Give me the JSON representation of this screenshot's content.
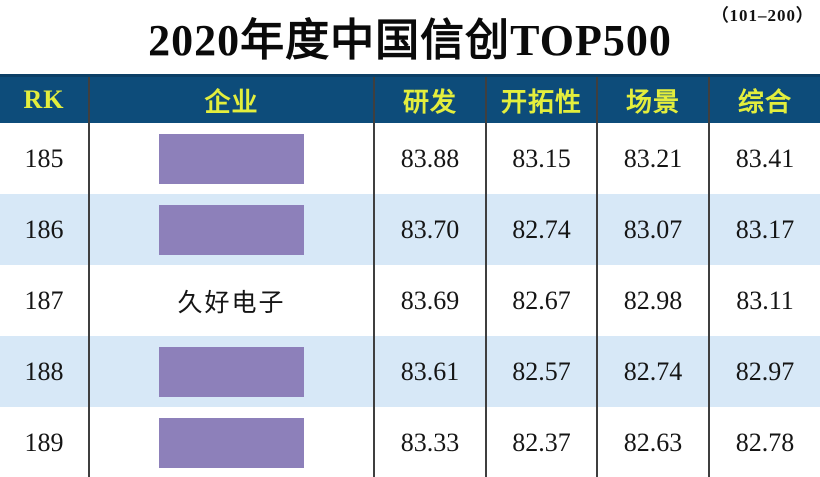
{
  "page": {
    "range_label": "（101–200）",
    "title": "2020年度中国信创TOP500"
  },
  "table": {
    "columns": [
      {
        "key": "rk",
        "label": "RK"
      },
      {
        "key": "company",
        "label": "企业"
      },
      {
        "key": "rd",
        "label": "研发"
      },
      {
        "key": "pioneering",
        "label": "开拓性"
      },
      {
        "key": "scenario",
        "label": "场景"
      },
      {
        "key": "overall",
        "label": "综合"
      }
    ],
    "rows": [
      {
        "rk": "185",
        "company": "",
        "redacted": true,
        "rd": "83.88",
        "pioneering": "83.15",
        "scenario": "83.21",
        "overall": "83.41"
      },
      {
        "rk": "186",
        "company": "",
        "redacted": true,
        "rd": "83.70",
        "pioneering": "82.74",
        "scenario": "83.07",
        "overall": "83.17"
      },
      {
        "rk": "187",
        "company": "久好电子",
        "redacted": false,
        "rd": "83.69",
        "pioneering": "82.67",
        "scenario": "82.98",
        "overall": "83.11"
      },
      {
        "rk": "188",
        "company": "",
        "redacted": true,
        "rd": "83.61",
        "pioneering": "82.57",
        "scenario": "82.74",
        "overall": "82.97"
      },
      {
        "rk": "189",
        "company": "",
        "redacted": true,
        "rd": "83.33",
        "pioneering": "82.37",
        "scenario": "82.63",
        "overall": "82.78"
      }
    ]
  },
  "colors": {
    "header_bg": "#0d4c7a",
    "header_text": "#e3ee3d",
    "row_alt_bg": "#d7e8f7",
    "redaction": "#8d80ba",
    "divider": "#3f3f3f",
    "text": "#111111"
  }
}
